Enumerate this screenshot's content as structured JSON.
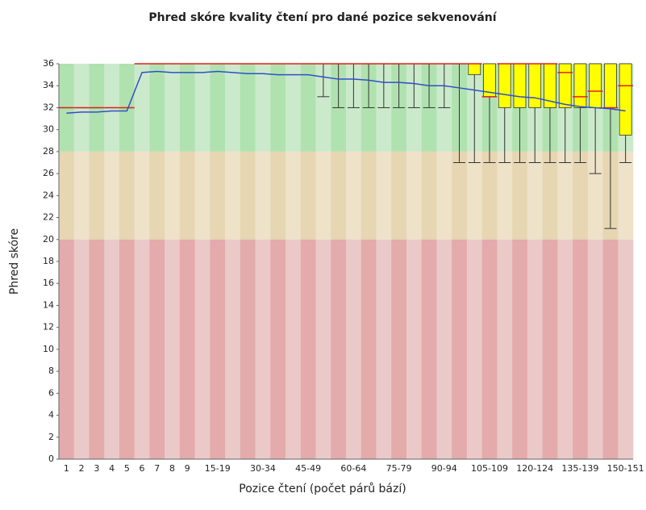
{
  "chart_data": {
    "type": "box",
    "title": "Phred skóre kvality čtení pro dané pozice sekvenování",
    "x_label": "Pozice čtení (počet párů bází)",
    "y_label": "Phred skóre",
    "categories": [
      "1",
      "2",
      "3",
      "4",
      "5",
      "6",
      "7",
      "8",
      "9",
      null,
      "15-19",
      null,
      null,
      "30-34",
      null,
      null,
      "45-49",
      null,
      null,
      "60-64",
      null,
      null,
      "75-79",
      null,
      null,
      "90-94",
      null,
      null,
      "105-109",
      null,
      null,
      "120-124",
      null,
      null,
      "135-139",
      null,
      null,
      "150-151"
    ],
    "ylim": [
      0,
      36
    ],
    "yticks": [
      0,
      2,
      4,
      6,
      8,
      10,
      12,
      14,
      16,
      18,
      20,
      22,
      24,
      26,
      28,
      30,
      32,
      34,
      36
    ],
    "zones": [
      {
        "from": 28,
        "to": 36,
        "colors": [
          "#b0e2b0",
          "#cbeacb"
        ]
      },
      {
        "from": 20,
        "to": 28,
        "colors": [
          "#e6d6b2",
          "#eee2c9"
        ]
      },
      {
        "from": 0,
        "to": 20,
        "colors": [
          "#e3abab",
          "#ebc9c9"
        ]
      }
    ],
    "box_color": "#ffff00",
    "median_color": "#e0201a",
    "mean_color": "#3050c8",
    "median": [
      32,
      32,
      32,
      32,
      32,
      36,
      36,
      36,
      36,
      36,
      36,
      36,
      36,
      36,
      36,
      36,
      36,
      36,
      36,
      36,
      36,
      36,
      36,
      36,
      36,
      36,
      36,
      36,
      33,
      36,
      36,
      36,
      36,
      35.2,
      33,
      33.5,
      32,
      34
    ],
    "q1": [
      32,
      32,
      32,
      32,
      32,
      36,
      36,
      36,
      36,
      36,
      36,
      36,
      36,
      36,
      36,
      36,
      36,
      36,
      36,
      36,
      36,
      36,
      36,
      36,
      36,
      36,
      36,
      35,
      33,
      32,
      32,
      32,
      32,
      32,
      32,
      32,
      32,
      29.5
    ],
    "q3": [
      32,
      32,
      32,
      32,
      32,
      36,
      36,
      36,
      36,
      36,
      36,
      36,
      36,
      36,
      36,
      36,
      36,
      36,
      36,
      36,
      36,
      36,
      36,
      36,
      36,
      36,
      36,
      36,
      36,
      36,
      36,
      36,
      36,
      36,
      36,
      36,
      36,
      36
    ],
    "whisker_low": [
      32,
      32,
      32,
      32,
      32,
      36,
      36,
      36,
      36,
      36,
      36,
      36,
      36,
      36,
      36,
      36,
      36,
      33,
      32,
      32,
      32,
      32,
      32,
      32,
      32,
      32,
      27,
      27,
      27,
      27,
      27,
      27,
      27,
      27,
      27,
      26,
      21,
      27
    ],
    "whisker_high": [
      32,
      32,
      32,
      32,
      32,
      36,
      36,
      36,
      36,
      36,
      36,
      36,
      36,
      36,
      36,
      36,
      36,
      36,
      36,
      36,
      36,
      36,
      36,
      36,
      36,
      36,
      36,
      36,
      36,
      36,
      36,
      36,
      36,
      36,
      36,
      36,
      36,
      36
    ],
    "mean": [
      31.5,
      31.6,
      31.6,
      31.7,
      31.7,
      35.2,
      35.3,
      35.2,
      35.2,
      35.2,
      35.3,
      35.2,
      35.1,
      35.1,
      35.0,
      35.0,
      35.0,
      34.8,
      34.6,
      34.6,
      34.5,
      34.3,
      34.3,
      34.2,
      34.0,
      34.0,
      33.8,
      33.6,
      33.4,
      33.2,
      33.0,
      32.9,
      32.6,
      32.3,
      32.1,
      32.0,
      31.9,
      31.7
    ]
  }
}
